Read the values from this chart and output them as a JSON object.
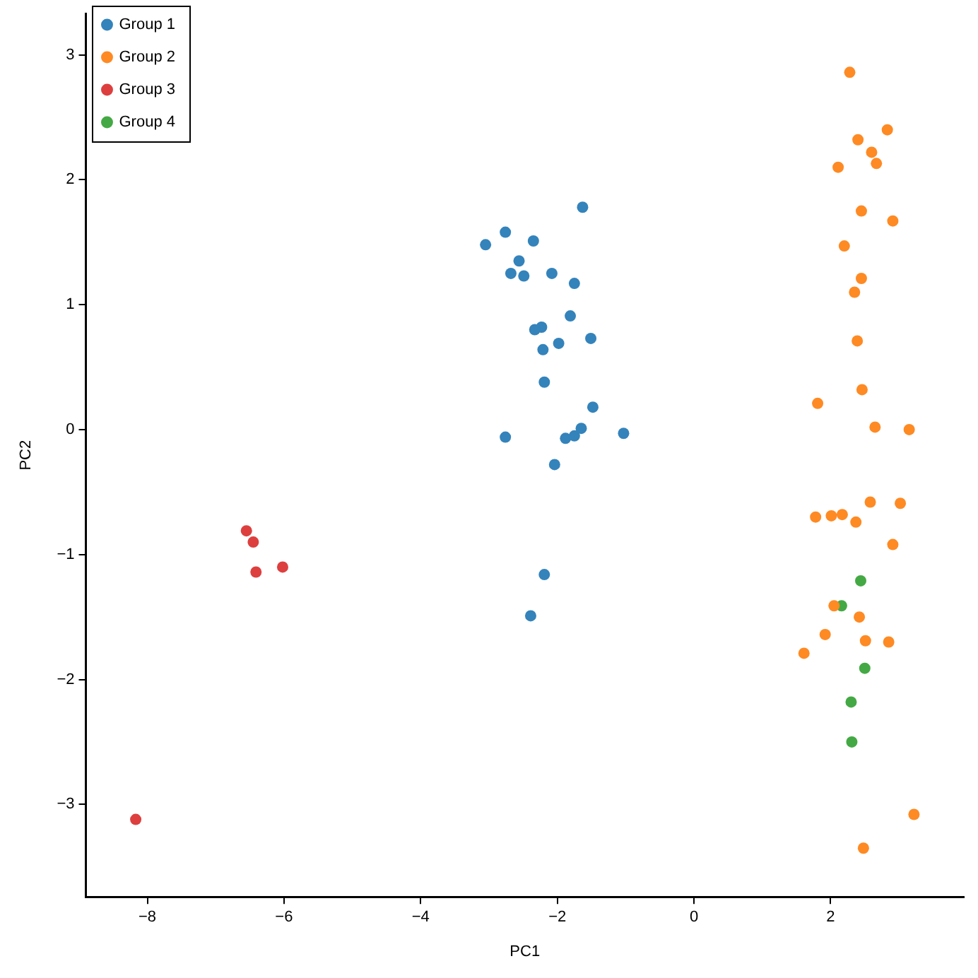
{
  "chart_data": {
    "type": "scatter",
    "xlabel": "PC1",
    "ylabel": "PC2",
    "xlim": [
      -8.9,
      3.95
    ],
    "ylim": [
      -3.74,
      3.33
    ],
    "xticks": [
      -8,
      -6,
      -4,
      -2,
      0,
      2
    ],
    "yticks": [
      -3,
      -2,
      -1,
      0,
      1,
      2,
      3
    ],
    "grid": false,
    "legend": "top left",
    "marker": "circle",
    "series": [
      {
        "name": "Group 1",
        "color": "#3483bb",
        "x": [
          -1.63,
          -3.05,
          -2.76,
          -2.35,
          -2.56,
          -2.68,
          -2.49,
          -2.08,
          -1.75,
          -1.81,
          -2.23,
          -2.33,
          -1.98,
          -1.51,
          -2.21,
          -2.19,
          -1.48,
          -2.76,
          -1.88,
          -1.75,
          -1.65,
          -1.03,
          -2.04,
          -2.19,
          -2.39
        ],
        "values": [
          1.78,
          1.48,
          1.58,
          1.51,
          1.35,
          1.25,
          1.23,
          1.25,
          1.17,
          0.91,
          0.82,
          0.8,
          0.69,
          0.73,
          0.64,
          0.38,
          0.18,
          -0.06,
          -0.07,
          -0.05,
          0.01,
          -0.03,
          -0.28,
          -1.16,
          -1.49
        ]
      },
      {
        "name": "Group 2",
        "color": "#fe8a24",
        "x": [
          2.28,
          2.83,
          2.4,
          2.6,
          2.67,
          2.11,
          2.45,
          2.91,
          2.2,
          2.45,
          2.35,
          2.39,
          2.46,
          1.81,
          2.65,
          3.15,
          2.58,
          3.02,
          1.78,
          2.01,
          2.17,
          2.37,
          2.91,
          2.05,
          2.42,
          1.92,
          2.51,
          2.85,
          1.61,
          3.22,
          2.48
        ],
        "values": [
          2.86,
          2.4,
          2.32,
          2.22,
          2.13,
          2.1,
          1.75,
          1.67,
          1.47,
          1.21,
          1.1,
          0.71,
          0.32,
          0.21,
          0.02,
          0.0,
          -0.58,
          -0.59,
          -0.7,
          -0.69,
          -0.68,
          -0.74,
          -0.92,
          -1.41,
          -1.5,
          -1.64,
          -1.69,
          -1.7,
          -1.79,
          -3.08,
          -3.35
        ]
      },
      {
        "name": "Group 3",
        "color": "#dd3f3f",
        "x": [
          -6.55,
          -6.45,
          -6.02,
          -6.41,
          -8.17
        ],
        "values": [
          -0.81,
          -0.9,
          -1.1,
          -1.14,
          -3.12
        ]
      },
      {
        "name": "Group 4",
        "color": "#44a944",
        "x": [
          2.44,
          2.16,
          2.5,
          2.3,
          2.31
        ],
        "values": [
          -1.21,
          -1.41,
          -1.91,
          -2.18,
          -2.5
        ]
      }
    ]
  }
}
